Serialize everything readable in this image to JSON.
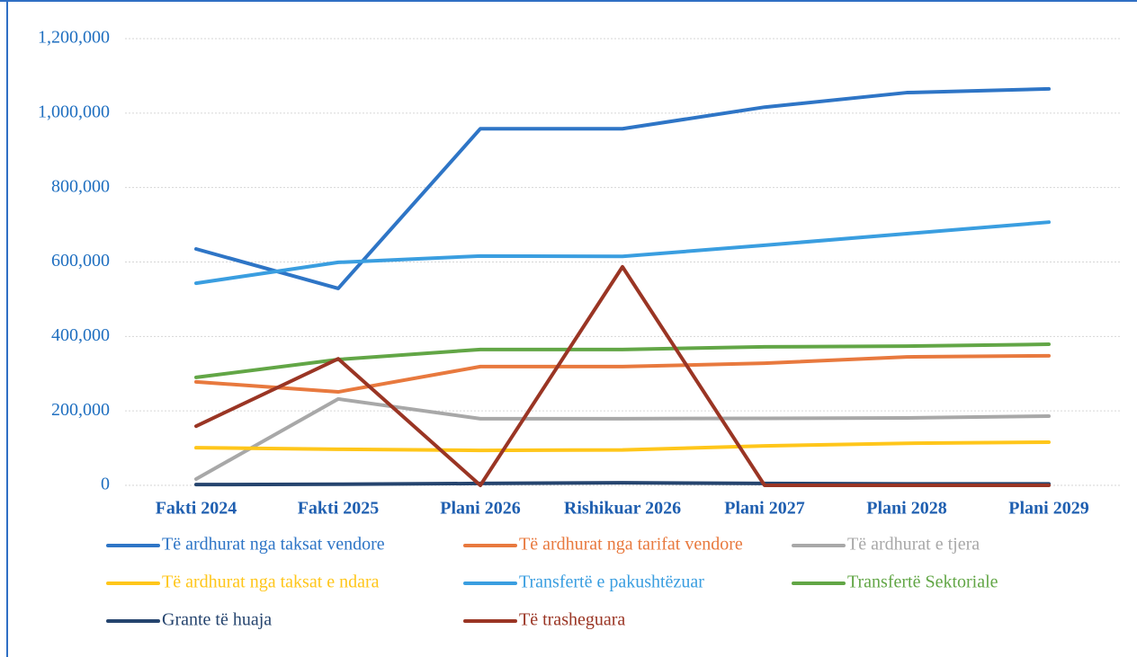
{
  "chart_data": {
    "type": "line",
    "categories": [
      "Fakti 2024",
      "Fakti 2025",
      "Plani 2026",
      "Rishikuar 2026",
      "Plani 2027",
      "Plani 2028",
      "Plani 2029"
    ],
    "series": [
      {
        "name": "Të ardhurat nga taksat vendore",
        "color": "#2e75c6",
        "values": [
          635000,
          529000,
          958000,
          958000,
          1016000,
          1055000,
          1065000
        ]
      },
      {
        "name": "Të ardhurat nga tarifat vendore",
        "color": "#e8793e",
        "values": [
          278000,
          251000,
          319000,
          319000,
          328000,
          345000,
          348000
        ]
      },
      {
        "name": "Të ardhurat e tjera",
        "color": "#a8a8a8",
        "values": [
          17000,
          232000,
          179000,
          179000,
          180000,
          181000,
          186000
        ]
      },
      {
        "name": "Të ardhurat nga taksat e ndara",
        "color": "#ffc61a",
        "values": [
          101000,
          97000,
          94000,
          95000,
          106000,
          113000,
          116000
        ]
      },
      {
        "name": "Transfertë e pakushtëzuar",
        "color": "#3a9ee0",
        "values": [
          543000,
          599000,
          616000,
          615000,
          645000,
          676000,
          707000
        ]
      },
      {
        "name": "Transfertë Sektoriale",
        "color": "#62a646",
        "values": [
          290000,
          338000,
          365000,
          365000,
          372000,
          374000,
          379000
        ]
      },
      {
        "name": "Grante të huaja",
        "color": "#25446e",
        "values": [
          2000,
          3000,
          5000,
          7000,
          5000,
          4000,
          4000
        ]
      },
      {
        "name": "Të trasheguara",
        "color": "#9a3524",
        "values": [
          159000,
          340000,
          0,
          587000,
          0,
          0,
          0
        ]
      }
    ],
    "ylim": [
      0,
      1200000
    ],
    "yticks": [
      0,
      {
        "value": 200000,
        "label": "200,000"
      },
      {
        "value": 400000,
        "label": "400,000"
      },
      {
        "value": 600000,
        "label": "600,000"
      },
      {
        "value": 800000,
        "label": "800,000"
      },
      {
        "value": 1000000,
        "label": "1,000,000"
      },
      {
        "value": 1200000,
        "label": "1,200,000"
      }
    ],
    "grid": true
  }
}
